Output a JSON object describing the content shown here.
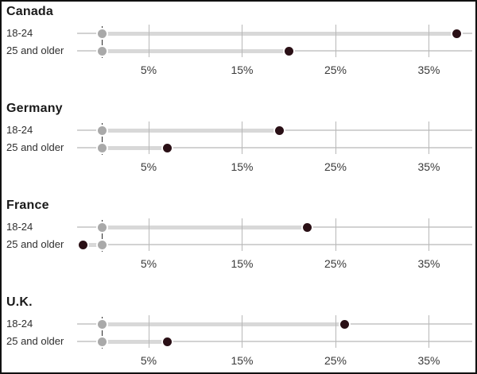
{
  "chart_data": {
    "type": "dumbbell",
    "orientation": "horizontal",
    "x_axis": {
      "tick_values": [
        5,
        15,
        25,
        35
      ],
      "tick_labels": [
        "5%",
        "15%",
        "25%",
        "35%"
      ],
      "min": -3,
      "max": 40,
      "baseline": 0,
      "grid": true
    },
    "categories": [
      "18-24",
      "25 and older"
    ],
    "series": [
      {
        "name": "baseline-marker",
        "color": "#a9a9a9"
      },
      {
        "name": "value-marker",
        "color": "#2a1016"
      }
    ],
    "panels": [
      {
        "country": "Canada",
        "rows": [
          {
            "label": "18-24",
            "baseline": 0,
            "value": 38
          },
          {
            "label": "25 and older",
            "baseline": 0,
            "value": 20
          }
        ]
      },
      {
        "country": "Germany",
        "rows": [
          {
            "label": "18-24",
            "baseline": 0,
            "value": 19
          },
          {
            "label": "25 and older",
            "baseline": 0,
            "value": 7
          }
        ]
      },
      {
        "country": "France",
        "rows": [
          {
            "label": "18-24",
            "baseline": 0,
            "value": 22
          },
          {
            "label": "25 and older",
            "baseline": 0,
            "value": -2
          }
        ]
      },
      {
        "country": "U.K.",
        "rows": [
          {
            "label": "18-24",
            "baseline": 0,
            "value": 26
          },
          {
            "label": "25 and older",
            "baseline": 0,
            "value": 7
          }
        ]
      }
    ]
  },
  "colors": {
    "value_dot": "#2a1016",
    "baseline_dot": "#a9a9a9",
    "band": "#d8d8d8",
    "axis_line": "#d2d2d2",
    "grid_line": "#b8b8b8",
    "zero_line": "#2a2a2a",
    "title_text": "#1a1a1a",
    "label_text": "#2e2e2e",
    "tick_text": "#3a3a3a",
    "frame": "#111111",
    "background": "#ffffff"
  }
}
